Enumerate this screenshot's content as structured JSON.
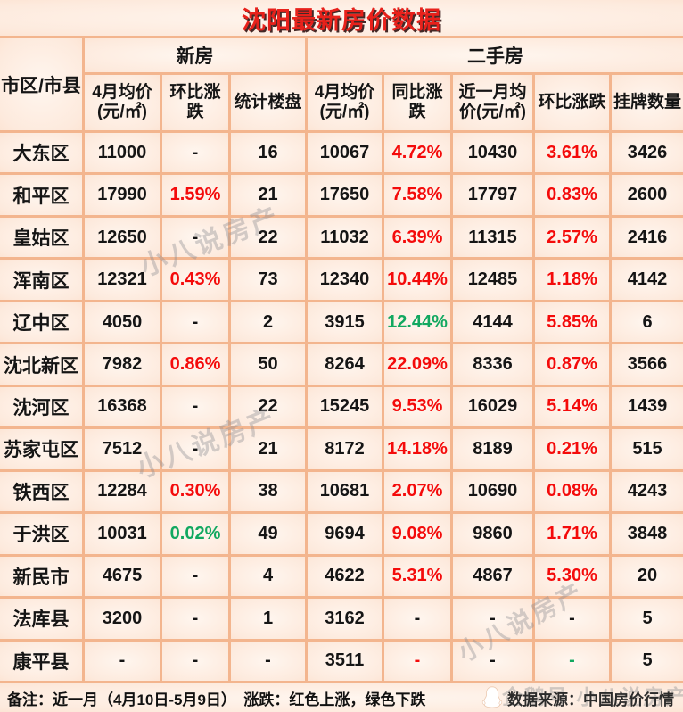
{
  "title": "沈阳最新房价数据",
  "colors": {
    "red": "#f40b0b",
    "green": "#12a860",
    "text": "#151515",
    "line": "#f3b58e",
    "cell_edge": "#fbd7bf",
    "title_red": "#e8211b"
  },
  "chart_data": {
    "type": "table",
    "title": "沈阳最新房价数据",
    "row_header": "市区/市县",
    "column_groups": [
      {
        "label": "新房",
        "span": 3
      },
      {
        "label": "二手房",
        "span": 5
      }
    ],
    "columns": [
      "4月均价\n(元/㎡)",
      "环比涨跌",
      "统计楼盘",
      "4月均价\n(元/㎡)",
      "同比涨跌",
      "近一月均\n价(元/㎡)",
      "环比涨跌",
      "挂牌数量"
    ],
    "rows": [
      {
        "district": "大东区",
        "cells": [
          {
            "t": "11000"
          },
          {
            "t": "-"
          },
          {
            "t": "16"
          },
          {
            "t": "10067"
          },
          {
            "t": "4.72%",
            "c": "red"
          },
          {
            "t": "10430"
          },
          {
            "t": "3.61%",
            "c": "red"
          },
          {
            "t": "3426"
          }
        ]
      },
      {
        "district": "和平区",
        "cells": [
          {
            "t": "17990"
          },
          {
            "t": "1.59%",
            "c": "red"
          },
          {
            "t": "21"
          },
          {
            "t": "17650"
          },
          {
            "t": "7.58%",
            "c": "red"
          },
          {
            "t": "17797"
          },
          {
            "t": "0.83%",
            "c": "red"
          },
          {
            "t": "2600"
          }
        ]
      },
      {
        "district": "皇姑区",
        "cells": [
          {
            "t": "12650"
          },
          {
            "t": "-"
          },
          {
            "t": "22"
          },
          {
            "t": "11032"
          },
          {
            "t": "6.39%",
            "c": "red"
          },
          {
            "t": "11315"
          },
          {
            "t": "2.57%",
            "c": "red"
          },
          {
            "t": "2416"
          }
        ]
      },
      {
        "district": "浑南区",
        "cells": [
          {
            "t": "12321"
          },
          {
            "t": "0.43%",
            "c": "red"
          },
          {
            "t": "73"
          },
          {
            "t": "12340"
          },
          {
            "t": "10.44%",
            "c": "red"
          },
          {
            "t": "12485"
          },
          {
            "t": "1.18%",
            "c": "red"
          },
          {
            "t": "4142"
          }
        ]
      },
      {
        "district": "辽中区",
        "cells": [
          {
            "t": "4050"
          },
          {
            "t": "-"
          },
          {
            "t": "2"
          },
          {
            "t": "3915"
          },
          {
            "t": "12.44%",
            "c": "green"
          },
          {
            "t": "4144"
          },
          {
            "t": "5.85%",
            "c": "red"
          },
          {
            "t": "6"
          }
        ]
      },
      {
        "district": "沈北新区",
        "cells": [
          {
            "t": "7982"
          },
          {
            "t": "0.86%",
            "c": "red"
          },
          {
            "t": "50"
          },
          {
            "t": "8264"
          },
          {
            "t": "22.09%",
            "c": "red"
          },
          {
            "t": "8336"
          },
          {
            "t": "0.87%",
            "c": "red"
          },
          {
            "t": "3566"
          }
        ]
      },
      {
        "district": "沈河区",
        "cells": [
          {
            "t": "16368"
          },
          {
            "t": "-"
          },
          {
            "t": "22"
          },
          {
            "t": "15245"
          },
          {
            "t": "9.53%",
            "c": "red"
          },
          {
            "t": "16029"
          },
          {
            "t": "5.14%",
            "c": "red"
          },
          {
            "t": "1439"
          }
        ]
      },
      {
        "district": "苏家屯区",
        "cells": [
          {
            "t": "7512"
          },
          {
            "t": "-"
          },
          {
            "t": "21"
          },
          {
            "t": "8172"
          },
          {
            "t": "14.18%",
            "c": "red"
          },
          {
            "t": "8189"
          },
          {
            "t": "0.21%",
            "c": "red"
          },
          {
            "t": "515"
          }
        ]
      },
      {
        "district": "铁西区",
        "cells": [
          {
            "t": "12284"
          },
          {
            "t": "0.30%",
            "c": "red"
          },
          {
            "t": "38"
          },
          {
            "t": "10681"
          },
          {
            "t": "2.07%",
            "c": "red"
          },
          {
            "t": "10690"
          },
          {
            "t": "0.08%",
            "c": "red"
          },
          {
            "t": "4243"
          }
        ]
      },
      {
        "district": "于洪区",
        "cells": [
          {
            "t": "10031"
          },
          {
            "t": "0.02%",
            "c": "green"
          },
          {
            "t": "49"
          },
          {
            "t": "9694"
          },
          {
            "t": "9.08%",
            "c": "red"
          },
          {
            "t": "9860"
          },
          {
            "t": "1.71%",
            "c": "red"
          },
          {
            "t": "3848"
          }
        ]
      },
      {
        "district": "新民市",
        "cells": [
          {
            "t": "4675"
          },
          {
            "t": "-"
          },
          {
            "t": "4"
          },
          {
            "t": "4622"
          },
          {
            "t": "5.31%",
            "c": "red"
          },
          {
            "t": "4867"
          },
          {
            "t": "5.30%",
            "c": "red"
          },
          {
            "t": "20"
          }
        ]
      },
      {
        "district": "法库县",
        "cells": [
          {
            "t": "3200"
          },
          {
            "t": "-"
          },
          {
            "t": "1"
          },
          {
            "t": "3162"
          },
          {
            "t": "-"
          },
          {
            "t": "-"
          },
          {
            "t": "-"
          },
          {
            "t": "5"
          }
        ]
      },
      {
        "district": "康平县",
        "cells": [
          {
            "t": "-"
          },
          {
            "t": "-"
          },
          {
            "t": "-"
          },
          {
            "t": "3511"
          },
          {
            "t": "-",
            "c": "red"
          },
          {
            "t": "-"
          },
          {
            "t": "-",
            "c": "green"
          },
          {
            "t": "5"
          }
        ]
      }
    ]
  },
  "footer": {
    "note": "备注：近一月（4月10日-5月9日）　涨跌：红色上涨，绿色下跌",
    "source": "数据来源：中国房价行情"
  },
  "watermark": {
    "diagonal": "小八说房产",
    "footer": "企鹅号 小八说房产"
  }
}
